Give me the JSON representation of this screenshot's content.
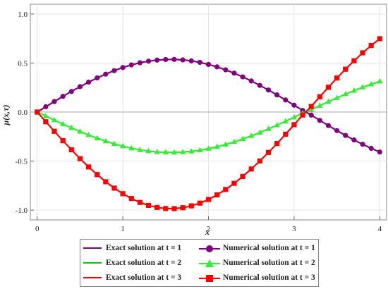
{
  "chart_data": {
    "type": "line",
    "title": "",
    "xlabel": "x",
    "ylabel": "μ(x,τ)",
    "xlim": [
      -0.08,
      4.08
    ],
    "ylim": [
      -1.1,
      1.1
    ],
    "xticks": [
      0,
      1,
      2,
      3,
      4
    ],
    "yticks": [
      -1.0,
      -0.5,
      0.0,
      0.5,
      1.0
    ],
    "xtick_labels": [
      "0",
      "1",
      "2",
      "3",
      "4"
    ],
    "ytick_labels": [
      "-1.0",
      "-0.5",
      "0.0",
      "0.5",
      "1.0"
    ],
    "grid": true,
    "legend_position": "bottom",
    "x": [
      0.0,
      0.1,
      0.2,
      0.3,
      0.4,
      0.5,
      0.6,
      0.7,
      0.8,
      0.9,
      1.0,
      1.1,
      1.2,
      1.3,
      1.4,
      1.5,
      1.6,
      1.7,
      1.8,
      1.9,
      2.0,
      2.1,
      2.2,
      2.3,
      2.4,
      2.5,
      2.6,
      2.7,
      2.8,
      2.9,
      3.0,
      3.1,
      3.2,
      3.3,
      3.4,
      3.5,
      3.6,
      3.7,
      3.8,
      3.9,
      4.0
    ],
    "series": [
      {
        "name": "Exact solution at t = 1",
        "color": "#800080",
        "marker": "none",
        "values": [
          0.0,
          0.054,
          0.107,
          0.16,
          0.21,
          0.259,
          0.305,
          0.348,
          0.387,
          0.423,
          0.454,
          0.481,
          0.503,
          0.519,
          0.53,
          0.536,
          0.537,
          0.532,
          0.522,
          0.507,
          0.486,
          0.461,
          0.431,
          0.397,
          0.359,
          0.317,
          0.272,
          0.225,
          0.175,
          0.123,
          0.07,
          0.016,
          -0.031,
          -0.085,
          -0.138,
          -0.189,
          -0.238,
          -0.285,
          -0.329,
          -0.37,
          -0.408
        ]
      },
      {
        "name": "Exact solution at t = 2",
        "color": "#00cc00",
        "marker": "none",
        "values": [
          0.0,
          -0.041,
          -0.082,
          -0.123,
          -0.161,
          -0.199,
          -0.234,
          -0.267,
          -0.297,
          -0.324,
          -0.348,
          -0.369,
          -0.386,
          -0.398,
          -0.407,
          -0.411,
          -0.412,
          -0.408,
          -0.401,
          -0.389,
          -0.373,
          -0.354,
          -0.331,
          -0.305,
          -0.275,
          -0.243,
          -0.209,
          -0.172,
          -0.134,
          -0.094,
          -0.053,
          -0.012,
          0.024,
          0.065,
          0.106,
          0.145,
          0.183,
          0.219,
          0.253,
          0.284,
          0.313
        ]
      },
      {
        "name": "Exact solution at t = 3",
        "color": "#ff0000",
        "marker": "none",
        "values": [
          0.0,
          -0.099,
          -0.196,
          -0.292,
          -0.385,
          -0.475,
          -0.56,
          -0.638,
          -0.711,
          -0.776,
          -0.833,
          -0.882,
          -0.922,
          -0.952,
          -0.973,
          -0.984,
          -0.985,
          -0.976,
          -0.957,
          -0.929,
          -0.892,
          -0.845,
          -0.79,
          -0.727,
          -0.657,
          -0.581,
          -0.499,
          -0.412,
          -0.321,
          -0.226,
          -0.129,
          -0.03,
          0.057,
          0.156,
          0.253,
          0.347,
          0.437,
          0.523,
          0.604,
          0.679,
          0.748
        ]
      },
      {
        "name": "Numerical solution at t = 1",
        "color": "#800080",
        "marker": "circle",
        "values": [
          0.0,
          0.054,
          0.107,
          0.16,
          0.21,
          0.259,
          0.305,
          0.348,
          0.387,
          0.423,
          0.454,
          0.481,
          0.503,
          0.519,
          0.53,
          0.536,
          0.537,
          0.532,
          0.522,
          0.507,
          0.486,
          0.461,
          0.431,
          0.397,
          0.359,
          0.317,
          0.272,
          0.225,
          0.175,
          0.123,
          0.07,
          0.016,
          -0.031,
          -0.085,
          -0.138,
          -0.189,
          -0.238,
          -0.285,
          -0.329,
          -0.37,
          -0.408
        ]
      },
      {
        "name": "Numerical solution at t = 2",
        "color": "#33ee33",
        "marker": "triangle",
        "values": [
          0.0,
          -0.041,
          -0.082,
          -0.123,
          -0.161,
          -0.199,
          -0.234,
          -0.267,
          -0.297,
          -0.324,
          -0.348,
          -0.369,
          -0.386,
          -0.398,
          -0.407,
          -0.411,
          -0.412,
          -0.408,
          -0.401,
          -0.389,
          -0.373,
          -0.354,
          -0.331,
          -0.305,
          -0.275,
          -0.243,
          -0.209,
          -0.172,
          -0.134,
          -0.094,
          -0.053,
          -0.012,
          0.024,
          0.065,
          0.106,
          0.145,
          0.183,
          0.219,
          0.253,
          0.284,
          0.313
        ]
      },
      {
        "name": "Numerical solution at t = 3",
        "color": "#ff0000",
        "marker": "square",
        "values": [
          0.0,
          -0.099,
          -0.196,
          -0.292,
          -0.385,
          -0.475,
          -0.56,
          -0.638,
          -0.711,
          -0.776,
          -0.833,
          -0.882,
          -0.922,
          -0.952,
          -0.973,
          -0.984,
          -0.985,
          -0.976,
          -0.957,
          -0.929,
          -0.892,
          -0.845,
          -0.79,
          -0.727,
          -0.657,
          -0.581,
          -0.499,
          -0.412,
          -0.321,
          -0.226,
          -0.129,
          -0.03,
          0.057,
          0.156,
          0.253,
          0.347,
          0.437,
          0.523,
          0.604,
          0.679,
          0.748
        ]
      }
    ]
  }
}
